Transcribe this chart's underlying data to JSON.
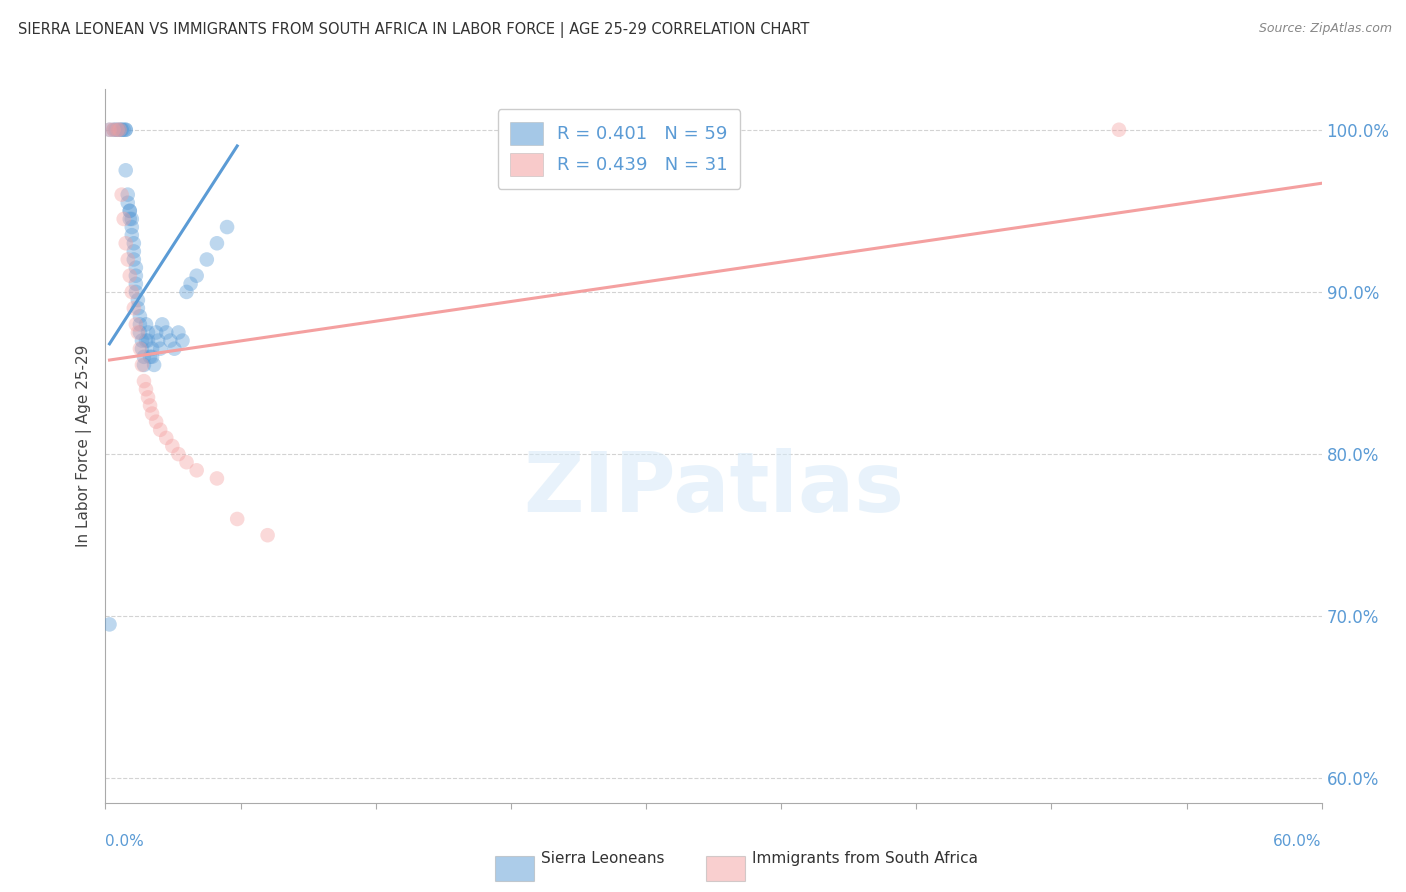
{
  "title": "SIERRA LEONEAN VS IMMIGRANTS FROM SOUTH AFRICA IN LABOR FORCE | AGE 25-29 CORRELATION CHART",
  "source": "Source: ZipAtlas.com",
  "ylabel": "In Labor Force | Age 25-29",
  "ylabel_right_ticks": [
    "100.0%",
    "90.0%",
    "80.0%",
    "70.0%",
    "60.0%"
  ],
  "ylabel_right_values": [
    1.0,
    0.9,
    0.8,
    0.7,
    0.6
  ],
  "xmin": 0.0,
  "xmax": 0.6,
  "ymin": 0.585,
  "ymax": 1.025,
  "legend_label_blue": "R = 0.401   N = 59",
  "legend_label_pink": "R = 0.439   N = 31",
  "blue_scatter_x": [
    0.002,
    0.004,
    0.005,
    0.006,
    0.007,
    0.008,
    0.008,
    0.009,
    0.01,
    0.01,
    0.01,
    0.011,
    0.011,
    0.012,
    0.012,
    0.012,
    0.013,
    0.013,
    0.013,
    0.014,
    0.014,
    0.014,
    0.015,
    0.015,
    0.015,
    0.015,
    0.016,
    0.016,
    0.017,
    0.017,
    0.017,
    0.018,
    0.018,
    0.019,
    0.019,
    0.02,
    0.02,
    0.021,
    0.021,
    0.022,
    0.023,
    0.023,
    0.024,
    0.025,
    0.026,
    0.027,
    0.028,
    0.03,
    0.032,
    0.034,
    0.036,
    0.038,
    0.04,
    0.042,
    0.045,
    0.05,
    0.055,
    0.06,
    0.002
  ],
  "blue_scatter_y": [
    1.0,
    1.0,
    1.0,
    1.0,
    1.0,
    1.0,
    1.0,
    1.0,
    1.0,
    1.0,
    0.975,
    0.96,
    0.955,
    0.95,
    0.945,
    0.95,
    0.945,
    0.94,
    0.935,
    0.93,
    0.925,
    0.92,
    0.915,
    0.91,
    0.905,
    0.9,
    0.895,
    0.89,
    0.885,
    0.88,
    0.875,
    0.87,
    0.865,
    0.86,
    0.855,
    0.88,
    0.87,
    0.875,
    0.87,
    0.86,
    0.865,
    0.86,
    0.855,
    0.875,
    0.87,
    0.865,
    0.88,
    0.875,
    0.87,
    0.865,
    0.875,
    0.87,
    0.9,
    0.905,
    0.91,
    0.92,
    0.93,
    0.94,
    0.695
  ],
  "pink_scatter_x": [
    0.002,
    0.004,
    0.006,
    0.007,
    0.008,
    0.009,
    0.01,
    0.011,
    0.012,
    0.013,
    0.014,
    0.015,
    0.016,
    0.017,
    0.018,
    0.019,
    0.02,
    0.021,
    0.022,
    0.023,
    0.025,
    0.027,
    0.03,
    0.033,
    0.036,
    0.04,
    0.045,
    0.055,
    0.065,
    0.08,
    0.5
  ],
  "pink_scatter_y": [
    1.0,
    1.0,
    1.0,
    1.0,
    0.96,
    0.945,
    0.93,
    0.92,
    0.91,
    0.9,
    0.89,
    0.88,
    0.875,
    0.865,
    0.855,
    0.845,
    0.84,
    0.835,
    0.83,
    0.825,
    0.82,
    0.815,
    0.81,
    0.805,
    0.8,
    0.795,
    0.79,
    0.785,
    0.76,
    0.75,
    1.0
  ],
  "blue_line_x": [
    0.002,
    0.065
  ],
  "blue_line_y": [
    0.868,
    0.99
  ],
  "pink_line_x": [
    0.002,
    0.6
  ],
  "pink_line_y": [
    0.858,
    0.967
  ],
  "watermark_text": "ZIPatlas",
  "background_color": "#ffffff",
  "scatter_size": 110,
  "scatter_alpha": 0.4,
  "blue_color": "#5b9bd5",
  "pink_color": "#f4a0a0",
  "grid_color": "#c8c8c8",
  "grid_alpha": 0.8,
  "xtick_count": 10
}
